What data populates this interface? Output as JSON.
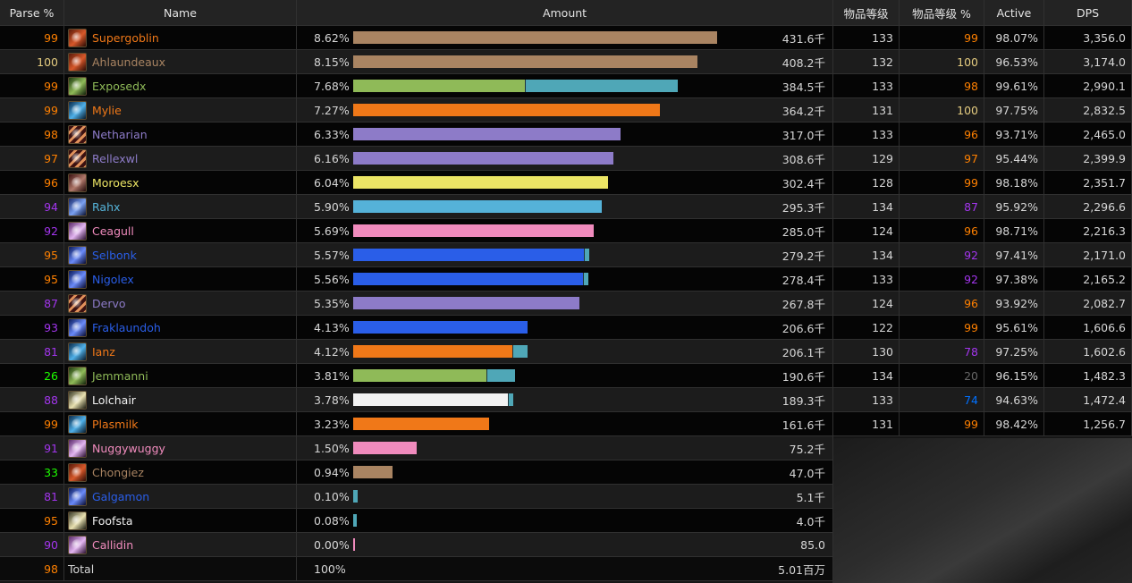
{
  "headers": {
    "parse": "Parse %",
    "name": "Name",
    "amount": "Amount",
    "ilvl": "物品等级",
    "ilvl_pct": "物品等级 %",
    "active": "Active",
    "dps": "DPS"
  },
  "colors": {
    "tan": "#a98462",
    "green": "#8fba58",
    "teal": "#4fa7b7",
    "orange": "#f07818",
    "purple": "#8d7bc8",
    "yellow": "#ece565",
    "cyan": "#55b2d8",
    "pink": "#f08bbd",
    "blue": "#2a5ee8",
    "white": "#f2f2f2",
    "parse_orange": "#ff8000",
    "parse_gold": "#e5cc80",
    "parse_purple": "#a335ee",
    "parse_blue": "#0070ff",
    "parse_green": "#1eff00",
    "parse_gray": "#666666"
  },
  "rows": [
    {
      "parse": "99",
      "name": "Supergoblin",
      "pct": "8.62%",
      "amount": "431.6千",
      "ilvl": "133",
      "ilvl_pct": "99",
      "active": "98.07%",
      "dps": "3,356.0",
      "fill": 0.862,
      "extra": 0,
      "bar": "tan",
      "name_color": "orange",
      "parse_color": "parse_orange",
      "ilvl_color": "parse_orange",
      "icon": "warrior-icon"
    },
    {
      "parse": "100",
      "name": "Ahlaundeaux",
      "pct": "8.15%",
      "amount": "408.2千",
      "ilvl": "132",
      "ilvl_pct": "100",
      "active": "96.53%",
      "dps": "3,174.0",
      "fill": 0.815,
      "extra": 0,
      "bar": "tan",
      "name_color": "tan",
      "parse_color": "parse_gold",
      "ilvl_color": "parse_gold",
      "icon": "warrior-icon"
    },
    {
      "parse": "99",
      "name": "Exposedx",
      "pct": "7.68%",
      "amount": "384.5千",
      "ilvl": "133",
      "ilvl_pct": "98",
      "active": "99.61%",
      "dps": "2,990.1",
      "fill": 0.768,
      "extra": 0.47,
      "bar": "green",
      "name_color": "green",
      "parse_color": "parse_orange",
      "ilvl_color": "parse_orange",
      "icon": "hunter-icon"
    },
    {
      "parse": "99",
      "name": "Mylie",
      "pct": "7.27%",
      "amount": "364.2千",
      "ilvl": "131",
      "ilvl_pct": "100",
      "active": "97.75%",
      "dps": "2,832.5",
      "fill": 0.727,
      "extra": 0,
      "bar": "orange",
      "name_color": "orange",
      "parse_color": "parse_orange",
      "ilvl_color": "parse_gold",
      "icon": "druid-icon"
    },
    {
      "parse": "98",
      "name": "Netharian",
      "pct": "6.33%",
      "amount": "317.0千",
      "ilvl": "133",
      "ilvl_pct": "96",
      "active": "93.71%",
      "dps": "2,465.0",
      "fill": 0.633,
      "extra": 0,
      "bar": "purple",
      "name_color": "purple",
      "parse_color": "parse_orange",
      "ilvl_color": "parse_orange",
      "icon": "warlock-icon"
    },
    {
      "parse": "97",
      "name": "Rellexwl",
      "pct": "6.16%",
      "amount": "308.6千",
      "ilvl": "129",
      "ilvl_pct": "97",
      "active": "95.44%",
      "dps": "2,399.9",
      "fill": 0.616,
      "extra": 0,
      "bar": "purple",
      "name_color": "purple",
      "parse_color": "parse_orange",
      "ilvl_color": "parse_orange",
      "icon": "warlock-icon"
    },
    {
      "parse": "96",
      "name": "Moroesx",
      "pct": "6.04%",
      "amount": "302.4千",
      "ilvl": "128",
      "ilvl_pct": "99",
      "active": "98.18%",
      "dps": "2,351.7",
      "fill": 0.604,
      "extra": 0,
      "bar": "yellow",
      "name_color": "yellow",
      "parse_color": "parse_orange",
      "ilvl_color": "parse_orange",
      "icon": "rogue-icon"
    },
    {
      "parse": "94",
      "name": "Rahx",
      "pct": "5.90%",
      "amount": "295.3千",
      "ilvl": "134",
      "ilvl_pct": "87",
      "active": "95.92%",
      "dps": "2,296.6",
      "fill": 0.59,
      "extra": 0,
      "bar": "cyan",
      "name_color": "cyan",
      "parse_color": "parse_purple",
      "ilvl_color": "parse_purple",
      "icon": "mage-icon"
    },
    {
      "parse": "92",
      "name": "Ceagull",
      "pct": "5.69%",
      "amount": "285.0千",
      "ilvl": "124",
      "ilvl_pct": "96",
      "active": "98.71%",
      "dps": "2,216.3",
      "fill": 0.569,
      "extra": 0,
      "bar": "pink",
      "name_color": "pink",
      "parse_color": "parse_purple",
      "ilvl_color": "parse_orange",
      "icon": "paladin-icon"
    },
    {
      "parse": "95",
      "name": "Selbonk",
      "pct": "5.57%",
      "amount": "279.2千",
      "ilvl": "134",
      "ilvl_pct": "92",
      "active": "97.41%",
      "dps": "2,171.0",
      "fill": 0.557,
      "extra": 0.02,
      "bar": "blue",
      "name_color": "blue",
      "parse_color": "parse_orange",
      "ilvl_color": "parse_purple",
      "icon": "shaman-icon"
    },
    {
      "parse": "95",
      "name": "Nigolex",
      "pct": "5.56%",
      "amount": "278.4千",
      "ilvl": "133",
      "ilvl_pct": "92",
      "active": "97.38%",
      "dps": "2,165.2",
      "fill": 0.556,
      "extra": 0.02,
      "bar": "blue",
      "name_color": "blue",
      "parse_color": "parse_orange",
      "ilvl_color": "parse_purple",
      "icon": "shaman-icon"
    },
    {
      "parse": "87",
      "name": "Dervo",
      "pct": "5.35%",
      "amount": "267.8千",
      "ilvl": "124",
      "ilvl_pct": "96",
      "active": "93.92%",
      "dps": "2,082.7",
      "fill": 0.535,
      "extra": 0,
      "bar": "purple",
      "name_color": "purple",
      "parse_color": "parse_purple",
      "ilvl_color": "parse_orange",
      "icon": "warlock-icon"
    },
    {
      "parse": "93",
      "name": "Fraklaundoh",
      "pct": "4.13%",
      "amount": "206.6千",
      "ilvl": "122",
      "ilvl_pct": "99",
      "active": "95.61%",
      "dps": "1,606.6",
      "fill": 0.413,
      "extra": 0,
      "bar": "blue",
      "name_color": "blue",
      "parse_color": "parse_purple",
      "ilvl_color": "parse_orange",
      "icon": "shaman-icon"
    },
    {
      "parse": "81",
      "name": "Ianz",
      "pct": "4.12%",
      "amount": "206.1千",
      "ilvl": "130",
      "ilvl_pct": "78",
      "active": "97.25%",
      "dps": "1,602.6",
      "fill": 0.412,
      "extra": 0.085,
      "bar": "orange",
      "name_color": "orange",
      "parse_color": "parse_purple",
      "ilvl_color": "parse_purple",
      "icon": "druid-icon"
    },
    {
      "parse": "26",
      "name": "Jemmanni",
      "pct": "3.81%",
      "amount": "190.6千",
      "ilvl": "134",
      "ilvl_pct": "20",
      "active": "96.15%",
      "dps": "1,482.3",
      "fill": 0.381,
      "extra": 0.17,
      "bar": "green",
      "name_color": "green",
      "parse_color": "parse_green",
      "ilvl_color": "parse_gray",
      "icon": "hunter-icon"
    },
    {
      "parse": "88",
      "name": "Lolchair",
      "pct": "3.78%",
      "amount": "189.3千",
      "ilvl": "133",
      "ilvl_pct": "74",
      "active": "94.63%",
      "dps": "1,472.4",
      "fill": 0.378,
      "extra": 0.03,
      "bar": "white",
      "name_color": "white",
      "parse_color": "parse_purple",
      "ilvl_color": "parse_blue",
      "icon": "priest-icon"
    },
    {
      "parse": "99",
      "name": "Plasmilk",
      "pct": "3.23%",
      "amount": "161.6千",
      "ilvl": "131",
      "ilvl_pct": "99",
      "active": "98.42%",
      "dps": "1,256.7",
      "fill": 0.323,
      "extra": 0,
      "bar": "orange",
      "name_color": "orange",
      "parse_color": "parse_orange",
      "ilvl_color": "parse_orange",
      "icon": "druid-icon"
    },
    {
      "parse": "91",
      "name": "Nuggywuggy",
      "pct": "1.50%",
      "amount": "75.2千",
      "fill": 0.15,
      "extra": 0,
      "bar": "pink",
      "name_color": "pink",
      "parse_color": "parse_purple",
      "icon": "paladin-icon",
      "partial": true
    },
    {
      "parse": "33",
      "name": "Chongiez",
      "pct": "0.94%",
      "amount": "47.0千",
      "fill": 0.094,
      "extra": 0,
      "bar": "tan",
      "name_color": "tan",
      "parse_color": "parse_green",
      "icon": "warrior-icon",
      "partial": true
    },
    {
      "parse": "81",
      "name": "Galgamon",
      "pct": "0.10%",
      "amount": "5.1千",
      "fill": 0.01,
      "extra": 0,
      "bar": "teal",
      "name_color": "blue",
      "parse_color": "parse_purple",
      "icon": "shaman-icon",
      "partial": true
    },
    {
      "parse": "95",
      "name": "Foofsta",
      "pct": "0.08%",
      "amount": "4.0千",
      "fill": 0.008,
      "extra": 0,
      "bar": "teal",
      "name_color": "white",
      "parse_color": "parse_orange",
      "icon": "priest-icon",
      "partial": true
    },
    {
      "parse": "90",
      "name": "Callidin",
      "pct": "0.00%",
      "amount": "85.0",
      "fill": 0.002,
      "extra": 0,
      "bar": "pink",
      "name_color": "pink",
      "parse_color": "parse_purple",
      "icon": "paladin-icon",
      "partial": true
    }
  ],
  "total": {
    "parse": "98",
    "name": "Total",
    "pct": "100%",
    "amount": "5.01百万"
  }
}
